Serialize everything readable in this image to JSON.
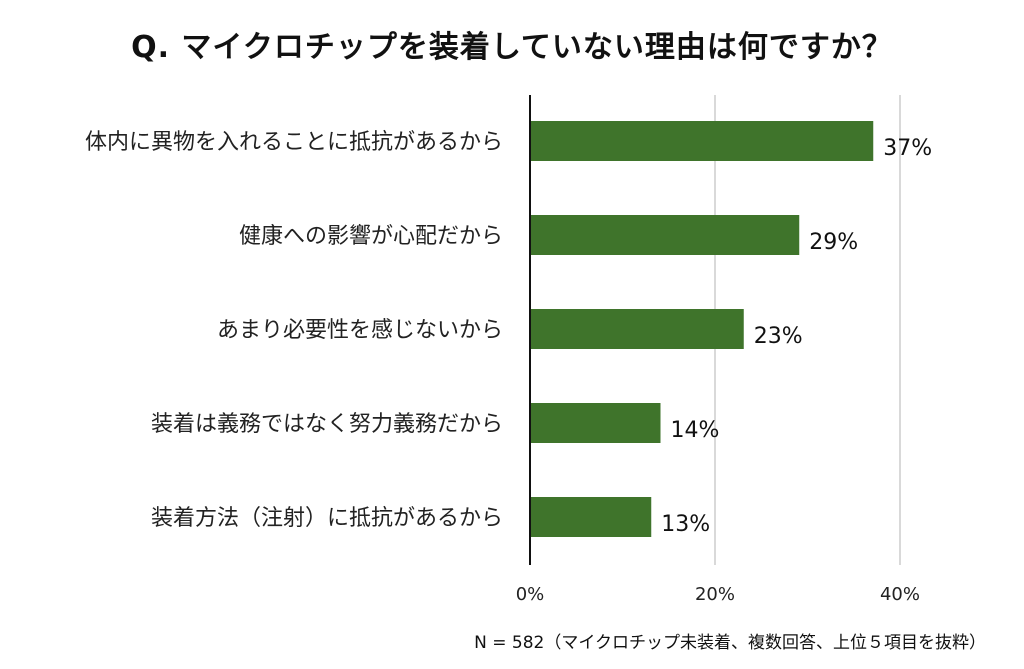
{
  "chart_data": {
    "type": "bar",
    "orientation": "horizontal",
    "title": "Q. マイクロチップを装着していない理由は何ですか？",
    "categories": [
      "体内に異物を入れることに抵抗があるから",
      "健康への影響が心配だから",
      "あまり必要性を感じないから",
      "装着は義務ではなく努力義務だから",
      "装着方法（注射）に抵抗があるから"
    ],
    "values": [
      37,
      29,
      23,
      14,
      13
    ],
    "value_labels": [
      "37%",
      "29%",
      "23%",
      "14%",
      "13%"
    ],
    "xlim": [
      0,
      40
    ],
    "xticks": [
      0,
      20,
      40
    ],
    "xtick_labels": [
      "0%",
      "20%",
      "40%"
    ],
    "grid": true,
    "bar_color": "#3f742b",
    "gridline_color": "#d9d9d9",
    "note": "N = 582（マイクロチップ未装着、複数回答、上位５項目を抜粋）"
  }
}
